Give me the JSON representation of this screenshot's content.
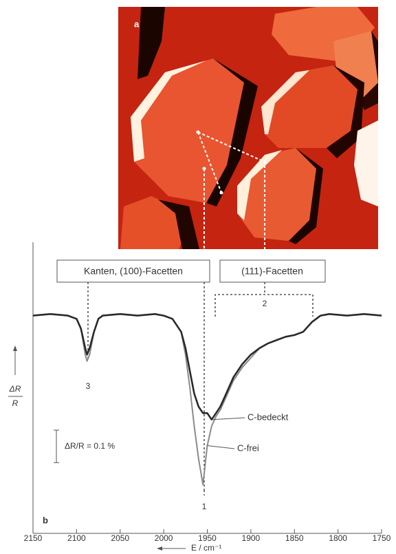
{
  "chart_data": {
    "type": "line",
    "x_label": "E / cm⁻¹",
    "y_label": {
      "numerator": "ΔR",
      "denominator": "R"
    },
    "xlim": [
      2150,
      1750
    ],
    "xticks": [
      2150,
      2100,
      2050,
      2000,
      1950,
      1900,
      1850,
      1800,
      1750
    ],
    "ylim": [
      -0.67,
      0.23
    ],
    "x": [
      2150,
      2130,
      2110,
      2100,
      2095,
      2090,
      2088,
      2085,
      2080,
      2075,
      2070,
      2050,
      2030,
      2010,
      2000,
      1990,
      1980,
      1975,
      1970,
      1965,
      1960,
      1955,
      1950,
      1945,
      1940,
      1935,
      1930,
      1920,
      1910,
      1900,
      1890,
      1880,
      1870,
      1860,
      1850,
      1840,
      1830,
      1820,
      1810,
      1790,
      1770,
      1750
    ],
    "series": [
      {
        "name": "C-bedeckt",
        "color": "#2a2a2a",
        "values": [
          0,
          0.005,
          0,
          -0.01,
          -0.04,
          -0.1,
          -0.12,
          -0.1,
          -0.05,
          -0.01,
          0,
          0.005,
          0,
          0.005,
          0,
          -0.01,
          -0.05,
          -0.1,
          -0.17,
          -0.24,
          -0.28,
          -0.3,
          -0.3,
          -0.32,
          -0.3,
          -0.28,
          -0.25,
          -0.19,
          -0.15,
          -0.12,
          -0.1,
          -0.085,
          -0.075,
          -0.065,
          -0.06,
          -0.05,
          -0.02,
          0,
          0.005,
          0,
          0.005,
          0
        ]
      },
      {
        "name": "C-frei",
        "color": "#8a8a8a",
        "values": [
          0,
          0.005,
          0,
          -0.01,
          -0.04,
          -0.12,
          -0.14,
          -0.12,
          -0.05,
          -0.01,
          0,
          0.005,
          0,
          0.005,
          0,
          -0.01,
          -0.05,
          -0.12,
          -0.22,
          -0.34,
          -0.44,
          -0.52,
          -0.4,
          -0.34,
          -0.31,
          -0.29,
          -0.26,
          -0.2,
          -0.16,
          -0.13,
          -0.1,
          -0.085,
          -0.075,
          -0.065,
          -0.06,
          -0.05,
          -0.02,
          0,
          0.005,
          0,
          0.005,
          0
        ]
      }
    ],
    "scale_bar": {
      "value": 0.1,
      "label": "ΔR/R = 0.1 %"
    },
    "annotations": [
      "Kanten, (100)-Facetten",
      "(111)-Facetten",
      "1",
      "2",
      "3",
      "a",
      "b"
    ]
  }
}
